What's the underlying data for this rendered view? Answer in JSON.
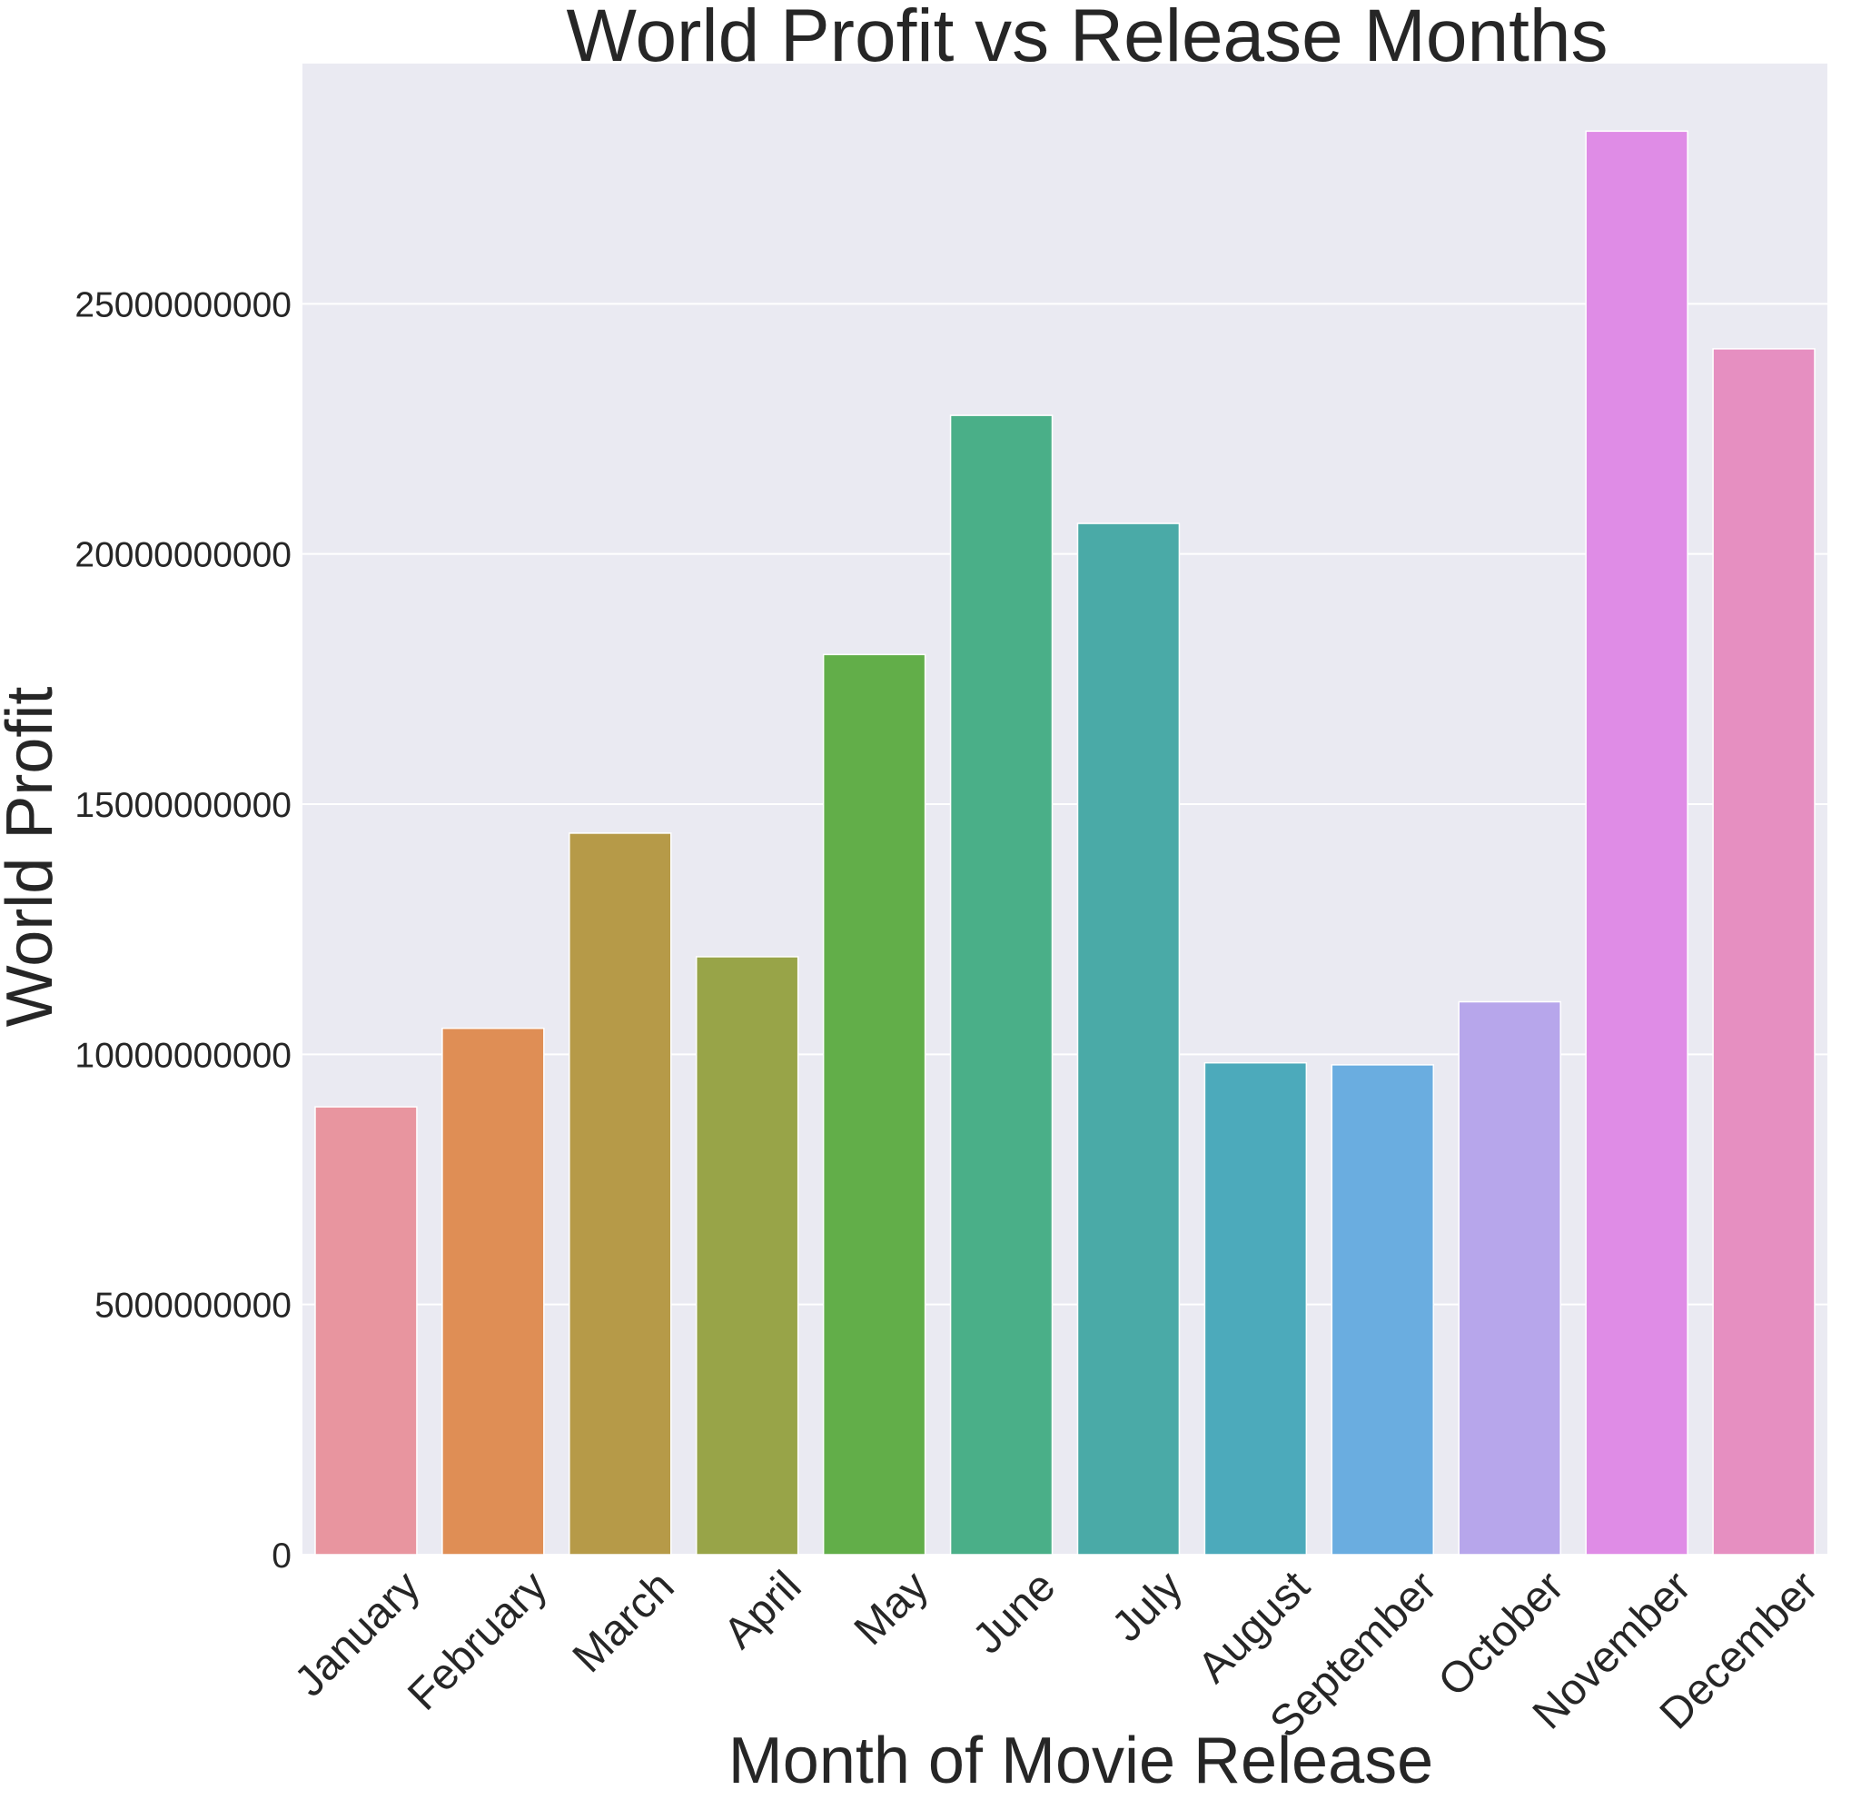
{
  "chart_data": {
    "type": "bar",
    "title": "World Profit vs Release Months",
    "xlabel": "Month of Movie Release",
    "ylabel": "World Profit",
    "categories": [
      "January",
      "February",
      "March",
      "April",
      "May",
      "June",
      "July",
      "August",
      "September",
      "October",
      "November",
      "December"
    ],
    "values": [
      8950000000,
      10520000000,
      14420000000,
      11950000000,
      17990000000,
      22770000000,
      20610000000,
      9830000000,
      9790000000,
      11050000000,
      28450000000,
      24100000000
    ],
    "colors": [
      "#e8959f",
      "#df8e55",
      "#b69a48",
      "#98a448",
      "#62ae49",
      "#4aaf88",
      "#4aaaa7",
      "#4caabb",
      "#6aade0",
      "#b7a6eb",
      "#df8ce6",
      "#e68fc1"
    ],
    "yticks": [
      "0",
      "5000000000",
      "10000000000",
      "15000000000",
      "20000000000",
      "25000000000"
    ],
    "ylim": [
      0,
      29800000000
    ],
    "grid": true,
    "background": "#eaeaf2"
  }
}
